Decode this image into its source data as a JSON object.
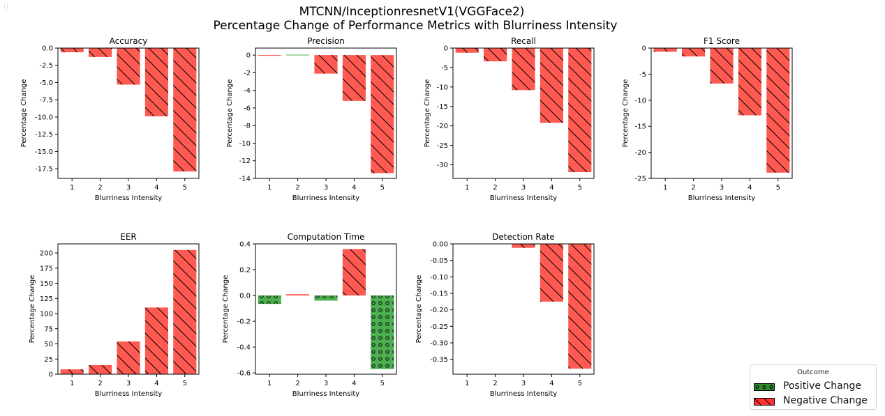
{
  "figure": {
    "title_line1": "MTCNN/InceptionresnetV1(VGGFace2)",
    "title_line2": "Percentage Change of Performance Metrics with Blurriness Intensity"
  },
  "legend": {
    "title": "Outcome",
    "positive_label": "Positive Change",
    "negative_label": "Negative Change"
  },
  "colors": {
    "positive": "#4caf50",
    "negative": "#ff5a52",
    "positive_swatch": "#2e8b2e",
    "negative_swatch": "#ff3030"
  },
  "chart_data": [
    {
      "type": "bar",
      "title": "Accuracy",
      "xlabel": "Blurriness Intensity",
      "ylabel": "Percentage Change",
      "categories": [
        "1",
        "2",
        "3",
        "4",
        "5"
      ],
      "values": [
        -0.6,
        -1.3,
        -5.3,
        -9.9,
        -17.9
      ],
      "ylim": [
        -18.9,
        0
      ],
      "yticks": [
        "0.0",
        "-2.5",
        "-5.0",
        "-7.5",
        "-10.0",
        "-12.5",
        "-15.0",
        "-17.5"
      ]
    },
    {
      "type": "bar",
      "title": "Precision",
      "xlabel": "Blurriness Intensity",
      "ylabel": "Percentage Change",
      "categories": [
        "1",
        "2",
        "3",
        "4",
        "5"
      ],
      "values": [
        -0.05,
        0.05,
        -2.1,
        -5.2,
        -13.4
      ],
      "ylim": [
        -14,
        0.8
      ],
      "yticks": [
        "0",
        "-2",
        "-4",
        "-6",
        "-8",
        "-10",
        "-12",
        "-14"
      ]
    },
    {
      "type": "bar",
      "title": "Recall",
      "xlabel": "Blurriness Intensity",
      "ylabel": "Percentage Change",
      "categories": [
        "1",
        "2",
        "3",
        "4",
        "5"
      ],
      "values": [
        -1.2,
        -3.4,
        -10.8,
        -19.2,
        -31.9
      ],
      "ylim": [
        -33.5,
        0
      ],
      "yticks": [
        "0",
        "-5",
        "-10",
        "-15",
        "-20",
        "-25",
        "-30"
      ]
    },
    {
      "type": "bar",
      "title": "F1 Score",
      "xlabel": "Blurriness Intensity",
      "ylabel": "Percentage Change",
      "categories": [
        "1",
        "2",
        "3",
        "4",
        "5"
      ],
      "values": [
        -0.7,
        -1.6,
        -6.8,
        -12.9,
        -23.9
      ],
      "ylim": [
        -25,
        0
      ],
      "yticks": [
        "0",
        "-5",
        "-10",
        "-15",
        "-20",
        "-25"
      ]
    },
    {
      "type": "bar",
      "title": "EER",
      "xlabel": "Blurriness Intensity",
      "ylabel": "Percentage Change",
      "categories": [
        "1",
        "2",
        "3",
        "4",
        "5"
      ],
      "values": [
        8,
        15,
        54,
        110,
        205
      ],
      "ylim": [
        0,
        215
      ],
      "yticks": [
        "0",
        "25",
        "50",
        "75",
        "100",
        "125",
        "150",
        "175",
        "200"
      ]
    },
    {
      "type": "bar",
      "title": "Computation Time",
      "xlabel": "Blurriness Intensity",
      "ylabel": "Percentage Change",
      "categories": [
        "1",
        "2",
        "3",
        "4",
        "5"
      ],
      "values": [
        -0.065,
        0.01,
        -0.04,
        0.36,
        -0.57
      ],
      "ylim": [
        -0.61,
        0.4
      ],
      "yticks": [
        "0.4",
        "0.2",
        "0.0",
        "-0.2",
        "-0.4",
        "-0.6"
      ]
    },
    {
      "type": "bar",
      "title": "Detection Rate",
      "xlabel": "Blurriness Intensity",
      "ylabel": "Percentage Change",
      "categories": [
        "1",
        "2",
        "3",
        "4",
        "5"
      ],
      "values": [
        0,
        0,
        -0.012,
        -0.175,
        -0.378
      ],
      "ylim": [
        -0.395,
        0
      ],
      "yticks": [
        "0.00",
        "-0.05",
        "-0.10",
        "-0.15",
        "-0.20",
        "-0.25",
        "-0.30",
        "-0.35"
      ]
    }
  ]
}
